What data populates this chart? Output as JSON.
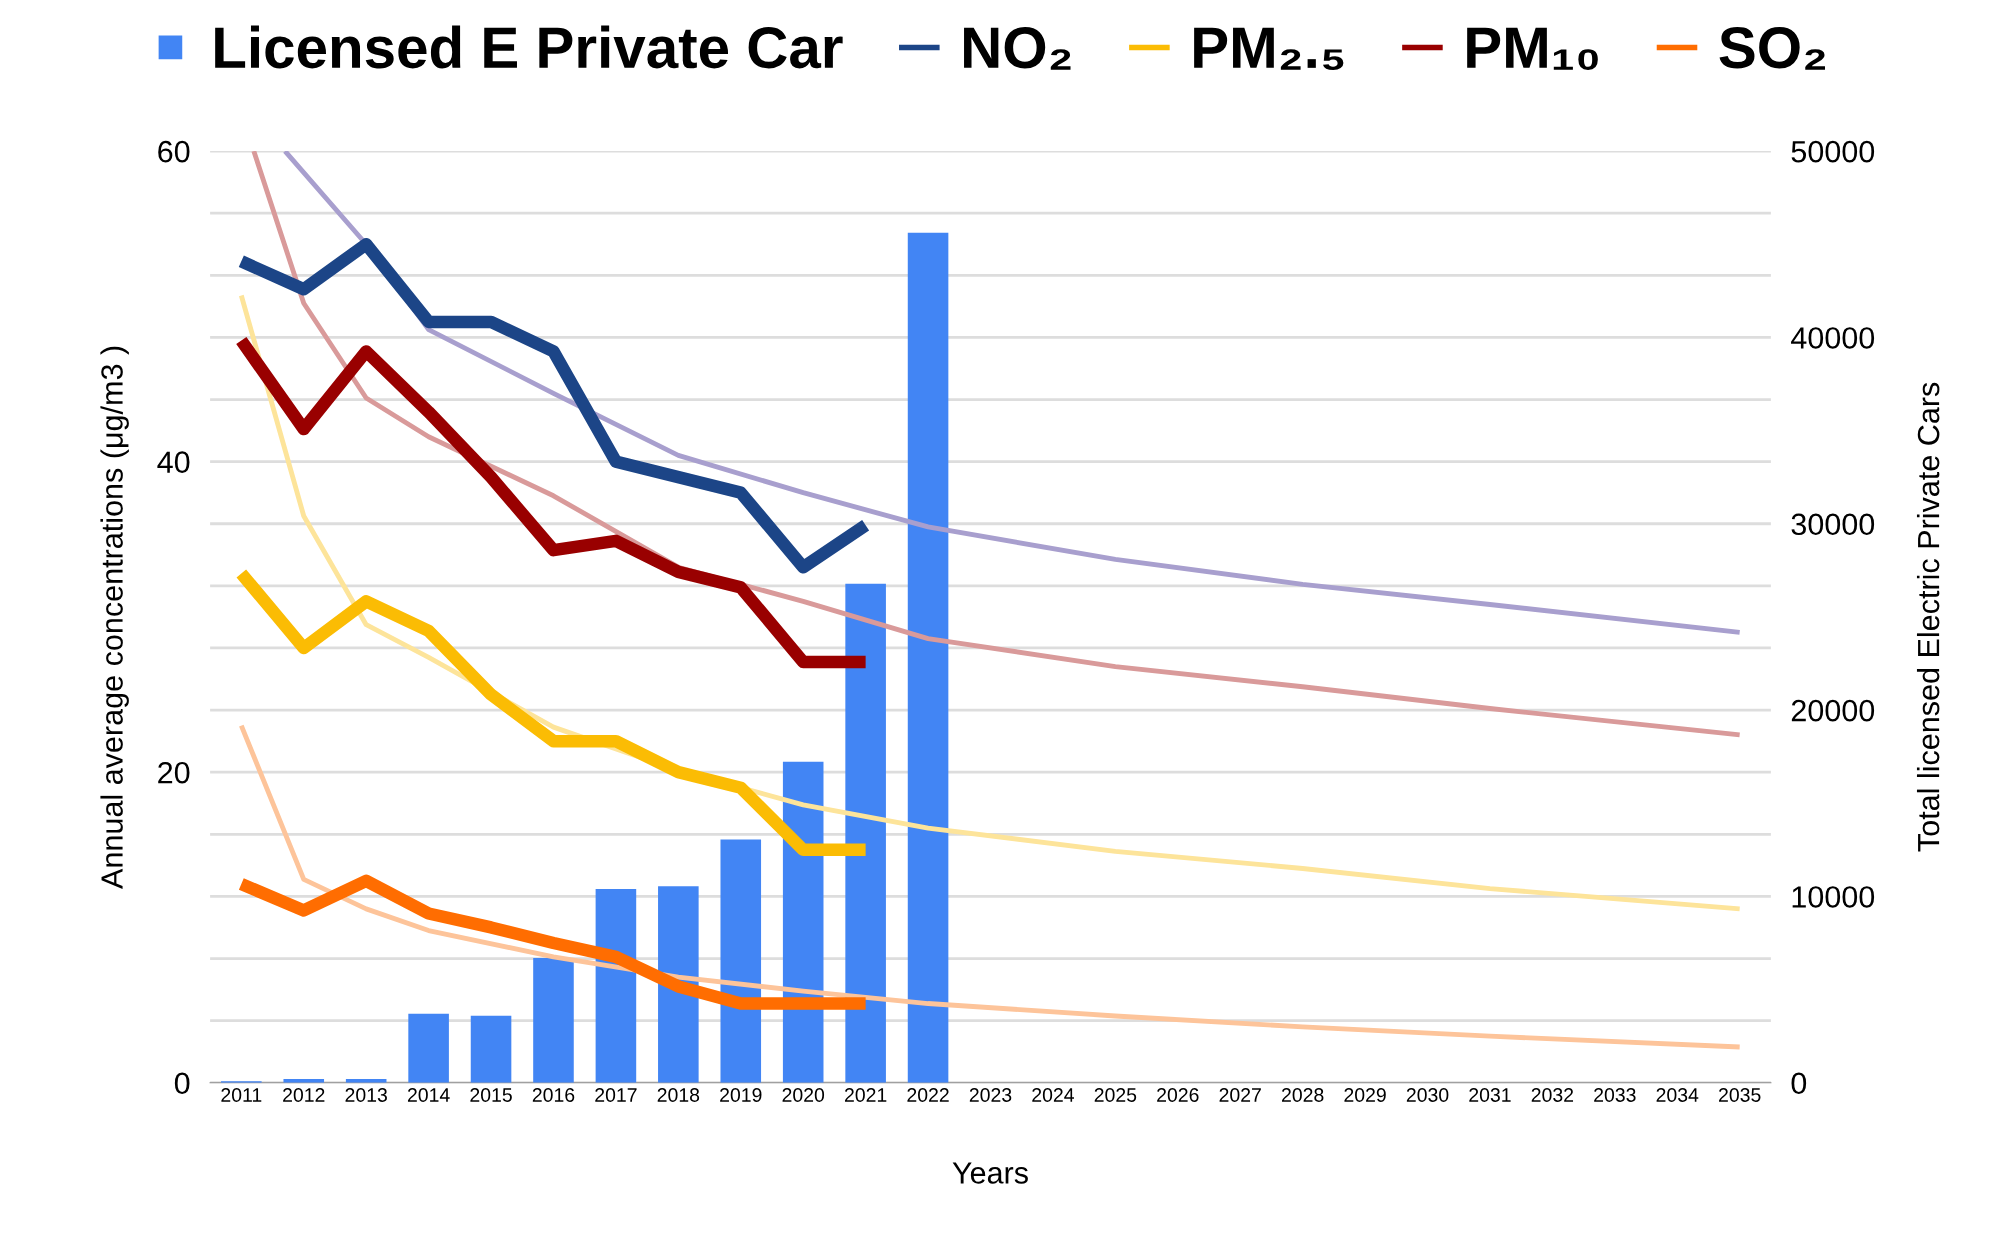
{
  "chart_data": {
    "type": "line",
    "xlabel": "Years",
    "ylabel": "Annual average concentrations (μg/m3 )",
    "y2label": "Total licensed Electric Private Cars",
    "x": [
      2011,
      2012,
      2013,
      2014,
      2015,
      2016,
      2017,
      2018,
      2019,
      2020,
      2021
    ],
    "xlim": [
      2010.5,
      2035.5
    ],
    "xticks": [
      2011,
      2012,
      2013,
      2014,
      2015,
      2016,
      2017,
      2018,
      2019,
      2020,
      2021,
      2022,
      2023,
      2024,
      2025,
      2026,
      2027,
      2028,
      2029,
      2030,
      2031,
      2032,
      2033,
      2034,
      2035
    ],
    "ylim": [
      0,
      60
    ],
    "yticks": [
      0,
      {
        "value": 4,
        "label": null
      },
      {
        "value": 8,
        "label": null
      },
      {
        "value": 12,
        "label": null
      },
      {
        "value": 16,
        "label": null
      },
      20,
      {
        "value": 24,
        "label": null
      },
      {
        "value": 28,
        "label": null
      },
      {
        "value": 32,
        "label": null
      },
      {
        "value": 36,
        "label": null
      },
      40,
      {
        "value": 44,
        "label": null
      },
      {
        "value": 48,
        "label": null
      },
      {
        "value": 52,
        "label": null
      },
      {
        "value": 56,
        "label": null
      },
      60
    ],
    "y2lim": [
      0,
      50000
    ],
    "y2ticks": [
      0,
      10000,
      20000,
      30000,
      40000,
      50000
    ],
    "grid": "y",
    "legend": "top",
    "series": [
      {
        "name": "Licensed E Private Car",
        "type": "bar",
        "axis": "y2",
        "color": "#4285f4",
        "x": [
          2011,
          2012,
          2013,
          2014,
          2015,
          2016,
          2017,
          2018,
          2019,
          2020,
          2021,
          2022
        ],
        "values": [
          80,
          200,
          200,
          3700,
          3600,
          6700,
          10400,
          10550,
          13060,
          17230,
          26780,
          45620
        ]
      },
      {
        "name": "NO₂",
        "color": "#1c4587",
        "values": [
          52.9,
          51.1,
          54.0,
          49.0,
          49.0,
          47.1,
          40.0,
          39.0,
          38.0,
          33.2,
          35.9
        ]
      },
      {
        "name": "PM₂.₅",
        "color": "#fbbc04",
        "values": [
          32.8,
          28.0,
          31.0,
          29.1,
          25.0,
          22.0,
          22.0,
          20.0,
          19.0,
          15.0,
          15.0
        ]
      },
      {
        "name": "PM₁₀",
        "color": "#990000",
        "values": [
          47.8,
          42.1,
          47.1,
          43.2,
          39.0,
          34.3,
          34.9,
          32.9,
          31.9,
          27.1,
          27.1
        ]
      },
      {
        "name": "SO₂",
        "color": "#ff6d01",
        "values": [
          12.8,
          11.1,
          13.0,
          10.9,
          10.0,
          9.0,
          8.1,
          6.2,
          5.1,
          5.1,
          5.1
        ]
      },
      {
        "type": "line",
        "color": "#a89fce",
        "x": [
          2011.7,
          2013,
          2014,
          2016,
          2018,
          2020,
          2022,
          2025,
          2028,
          2031,
          2035
        ],
        "values": [
          60,
          54.0,
          48.5,
          44.4,
          40.4,
          38.0,
          35.8,
          33.7,
          32.1,
          30.8,
          29.0
        ]
      },
      {
        "type": "line",
        "color": "#d99a9a",
        "x": [
          2011.2,
          2012,
          2013,
          2014,
          2016,
          2018,
          2020,
          2022,
          2025,
          2028,
          2031,
          2035
        ],
        "values": [
          60,
          50.2,
          44.1,
          41.6,
          37.8,
          33.2,
          31.0,
          28.6,
          26.8,
          25.5,
          24.1,
          22.4
        ]
      },
      {
        "type": "line",
        "color": "#fde49a",
        "x": [
          2011,
          2012,
          2013,
          2014,
          2016,
          2018,
          2020,
          2022,
          2025,
          2028,
          2031,
          2035
        ],
        "values": [
          50.7,
          36.5,
          29.5,
          27.4,
          22.9,
          20.1,
          17.9,
          16.4,
          14.9,
          13.8,
          12.5,
          11.2
        ]
      },
      {
        "type": "line",
        "color": "#fdc49a",
        "x": [
          2011,
          2012,
          2013,
          2014,
          2016,
          2018,
          2020,
          2022,
          2025,
          2028,
          2031,
          2035
        ],
        "values": [
          23.0,
          13.1,
          11.2,
          9.8,
          8.1,
          6.8,
          5.9,
          5.1,
          4.3,
          3.6,
          3.0,
          2.3
        ]
      }
    ]
  }
}
